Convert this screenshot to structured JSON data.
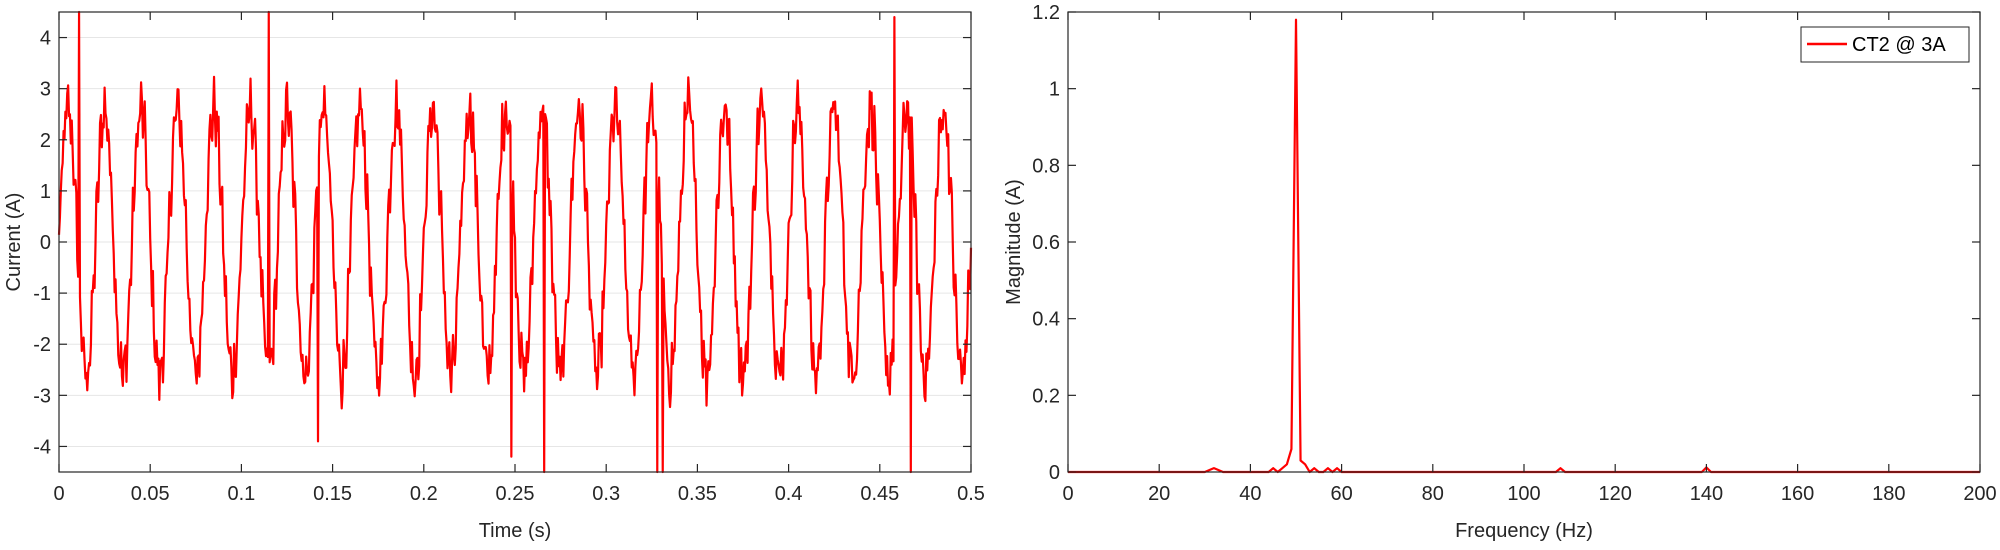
{
  "colors": {
    "series": "#ff0000",
    "axis": "#262626",
    "grid": "#e6e6e6",
    "background": "#ffffff"
  },
  "chart_data": [
    {
      "type": "line",
      "xlabel": "Time (s)",
      "ylabel": "Current (A)",
      "xlim": [
        0,
        0.5
      ],
      "ylim": [
        -4.5,
        4.5
      ],
      "xticks": [
        0,
        0.05,
        0.1,
        0.15,
        0.2,
        0.25,
        0.3,
        0.35,
        0.4,
        0.45,
        0.5
      ],
      "xtick_labels": [
        "0",
        "0.05",
        "0.1",
        "0.15",
        "0.2",
        "0.25",
        "0.3",
        "0.35",
        "0.4",
        "0.45",
        "0.5"
      ],
      "yticks": [
        -4,
        -3,
        -2,
        -1,
        0,
        1,
        2,
        3,
        4
      ],
      "ytick_labels": [
        "-4",
        "-3",
        "-2",
        "-1",
        "0",
        "1",
        "2",
        "3",
        "4"
      ],
      "grid": "y-major",
      "series": [
        {
          "color": "#ff0000",
          "description_type": "noisy sinusoid",
          "amplitude": 2.6,
          "frequency_hz": 50,
          "noise_amplitude": 0.45,
          "sample_count": 1000,
          "spikes": [
            {
              "x": 0.011,
              "y": 4.5
            },
            {
              "x": 0.115,
              "y": 4.5
            },
            {
              "x": 0.142,
              "y": -3.9
            },
            {
              "x": 0.248,
              "y": -4.2
            },
            {
              "x": 0.266,
              "y": -4.5
            },
            {
              "x": 0.328,
              "y": -4.5
            },
            {
              "x": 0.331,
              "y": -4.5
            },
            {
              "x": 0.458,
              "y": 4.4
            },
            {
              "x": 0.467,
              "y": -4.5
            }
          ]
        }
      ]
    },
    {
      "type": "line",
      "xlabel": "Frequency (Hz)",
      "ylabel": "Magnitude (A)",
      "xlim": [
        0,
        200
      ],
      "ylim": [
        0,
        1.2
      ],
      "xticks": [
        0,
        20,
        40,
        60,
        80,
        100,
        120,
        140,
        160,
        180,
        200
      ],
      "xtick_labels": [
        "0",
        "20",
        "40",
        "60",
        "80",
        "100",
        "120",
        "140",
        "160",
        "180",
        "200"
      ],
      "yticks": [
        0,
        0.2,
        0.4,
        0.6,
        0.8,
        1,
        1.2
      ],
      "ytick_labels": [
        "0",
        "0.2",
        "0.4",
        "0.6",
        "0.8",
        "1",
        "1.2"
      ],
      "grid": "off",
      "legend": {
        "position": "top-right",
        "entries": [
          "CT2 @ 3A"
        ]
      },
      "series": [
        {
          "name": "CT2 @ 3A",
          "color": "#ff0000",
          "x": [
            0,
            30,
            32,
            34,
            44,
            45,
            46,
            47,
            48,
            49,
            50,
            51,
            52,
            53,
            54,
            55,
            56,
            57,
            58,
            59,
            60,
            107,
            108,
            109,
            139,
            140,
            141,
            200
          ],
          "y": [
            0,
            0,
            0.01,
            0,
            0,
            0.01,
            0,
            0.01,
            0.02,
            0.06,
            1.18,
            0.03,
            0.02,
            0,
            0.01,
            0,
            0,
            0.01,
            0,
            0.01,
            0,
            0,
            0.01,
            0,
            0,
            0.012,
            0,
            0
          ]
        }
      ]
    }
  ]
}
